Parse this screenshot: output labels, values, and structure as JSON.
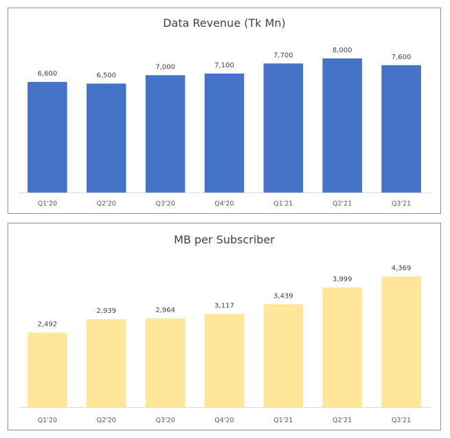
{
  "chart_data": [
    {
      "type": "bar",
      "title": "Data Revenue (Tk Mn)",
      "categories": [
        "Q1'20",
        "Q2'20",
        "Q3'20",
        "Q4'20",
        "Q1'21",
        "Q2'21",
        "Q3'21"
      ],
      "values": [
        6600,
        6500,
        7000,
        7100,
        7700,
        8000,
        7600
      ],
      "data_labels": [
        "6,600",
        "6,500",
        "7,000",
        "7,100",
        "7,700",
        "8,000",
        "7,600"
      ],
      "ylim": [
        0,
        8000
      ],
      "color": "#4472C4",
      "grid": false,
      "legend": "none"
    },
    {
      "type": "bar",
      "title": "MB per Subscriber",
      "categories": [
        "Q1'20",
        "Q2'20",
        "Q3'20",
        "Q4'20",
        "Q1'21",
        "Q2'21",
        "Q3'21"
      ],
      "values": [
        2492,
        2939,
        2964,
        3117,
        3439,
        3999,
        4369
      ],
      "data_labels": [
        "2,492",
        "2,939",
        "2,964",
        "3,117",
        "3,439",
        "3,999",
        "4,369"
      ],
      "ylim": [
        0,
        4369
      ],
      "color": "#FFE699",
      "grid": false,
      "legend": "none"
    }
  ]
}
